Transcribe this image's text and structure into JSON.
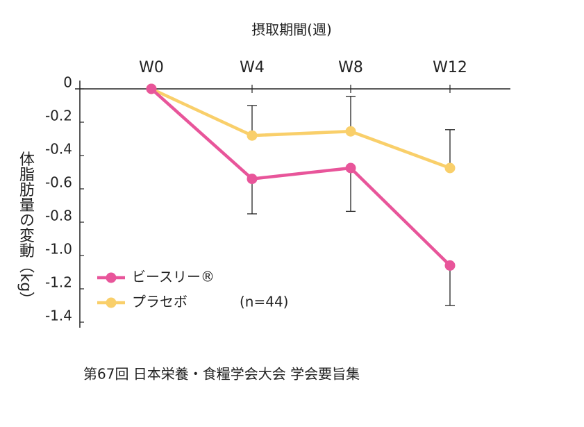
{
  "chart_data": {
    "type": "line",
    "x_axis_label": "摂取期間(週)",
    "y_axis_label": "体脂肪量の変動（kg）",
    "categories": [
      "W0",
      "W4",
      "W8",
      "W12"
    ],
    "series": [
      {
        "name": "ビースリー®",
        "color": "#e8559a",
        "values": [
          0,
          -0.54,
          -0.475,
          -1.06
        ],
        "errors": [
          0,
          0.21,
          0.26,
          0.24
        ],
        "error_side": "down"
      },
      {
        "name": "プラセボ",
        "color": "#f9cf6a",
        "values": [
          0,
          -0.28,
          -0.255,
          -0.475
        ],
        "errors": [
          0,
          0.18,
          0.21,
          0.23
        ],
        "error_side": "up"
      }
    ],
    "legend_note": "(n=44)",
    "ylim": [
      0,
      -1.4
    ],
    "yticks": [
      0,
      -0.2,
      -0.4,
      -0.6,
      -0.8,
      {
        "value": -1,
        "label": "-1.0"
      },
      -1.2,
      -1.4
    ],
    "source": "第67回 日本栄養・食糧学会大会 学会要旨集"
  }
}
